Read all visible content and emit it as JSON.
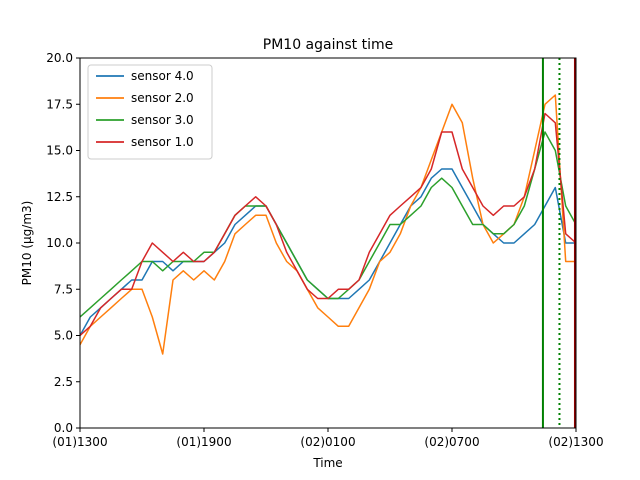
{
  "chart_data": {
    "type": "line",
    "title": "PM10 against  time",
    "xlabel": "Time",
    "ylabel": "PM10 (µg/m3)",
    "xlim": [
      0,
      24
    ],
    "ylim": [
      0,
      20
    ],
    "x_ticks": [
      {
        "value": 0,
        "label": "(01)1300"
      },
      {
        "value": 6,
        "label": "(01)1900"
      },
      {
        "value": 12,
        "label": "(02)0100"
      },
      {
        "value": 18,
        "label": "(02)0700"
      },
      {
        "value": 24,
        "label": "(02)1300"
      }
    ],
    "y_ticks": [
      0,
      2.5,
      5,
      7.5,
      10,
      12.5,
      15,
      17.5,
      20
    ],
    "y_tick_labels": [
      "0.0",
      "2.5",
      "5.0",
      "7.5",
      "10.0",
      "12.5",
      "15.0",
      "17.5",
      "20.0"
    ],
    "grid": false,
    "legend_position": "top-left",
    "series": [
      {
        "name": "sensor 4.0",
        "color": "#1f77b4",
        "x": [
          0,
          0.5,
          1,
          1.5,
          2,
          2.5,
          3,
          3.5,
          4,
          4.5,
          5,
          5.5,
          6,
          6.5,
          7,
          7.5,
          8,
          8.5,
          9,
          9.5,
          10,
          10.5,
          11,
          11.5,
          12,
          12.5,
          13,
          13.5,
          14,
          14.5,
          15,
          15.5,
          16,
          16.5,
          17,
          17.5,
          18,
          18.5,
          19,
          19.5,
          20,
          20.5,
          21,
          21.5,
          22,
          22.5,
          23,
          23.5,
          24
        ],
        "values": [
          5,
          6,
          6.5,
          7,
          7.5,
          8,
          8,
          9,
          9,
          8.5,
          9,
          9,
          9,
          9.5,
          10,
          11,
          11.5,
          12,
          12,
          11,
          10,
          9,
          8,
          7.5,
          7,
          7,
          7,
          7.5,
          8,
          9,
          10,
          11,
          12,
          12.5,
          13.5,
          14,
          14,
          13,
          12,
          11,
          10.5,
          10,
          10,
          10.5,
          11,
          12,
          13,
          10,
          10
        ]
      },
      {
        "name": "sensor 2.0",
        "color": "#ff7f0e",
        "x": [
          0,
          0.5,
          1,
          1.5,
          2,
          2.5,
          3,
          3.5,
          4,
          4.5,
          5,
          5.5,
          6,
          6.5,
          7,
          7.5,
          8,
          8.5,
          9,
          9.5,
          10,
          10.5,
          11,
          11.5,
          12,
          12.5,
          13,
          13.5,
          14,
          14.5,
          15,
          15.5,
          16,
          16.5,
          17,
          17.5,
          18,
          18.5,
          19,
          19.5,
          20,
          20.5,
          21,
          21.5,
          22,
          22.5,
          23,
          23.5,
          24
        ],
        "values": [
          4.5,
          5.5,
          6,
          6.5,
          7,
          7.5,
          7.5,
          6,
          4,
          8,
          8.5,
          8,
          8.5,
          8,
          9,
          10.5,
          11,
          11.5,
          11.5,
          10,
          9,
          8.5,
          7.5,
          6.5,
          6,
          5.5,
          5.5,
          6.5,
          7.5,
          9,
          9.5,
          10.5,
          12,
          13,
          14.5,
          16,
          17.5,
          16.5,
          13.5,
          11,
          10,
          10.5,
          11,
          12.5,
          15,
          17.5,
          18,
          9,
          9
        ]
      },
      {
        "name": "sensor 3.0",
        "color": "#2ca02c",
        "x": [
          0,
          0.5,
          1,
          1.5,
          2,
          2.5,
          3,
          3.5,
          4,
          4.5,
          5,
          5.5,
          6,
          6.5,
          7,
          7.5,
          8,
          8.5,
          9,
          9.5,
          10,
          10.5,
          11,
          11.5,
          12,
          12.5,
          13,
          13.5,
          14,
          14.5,
          15,
          15.5,
          16,
          16.5,
          17,
          17.5,
          18,
          18.5,
          19,
          19.5,
          20,
          20.5,
          21,
          21.5,
          22,
          22.5,
          23,
          23.5,
          24
        ],
        "values": [
          6,
          6.5,
          7,
          7.5,
          8,
          8.5,
          9,
          9,
          8.5,
          9,
          9,
          9,
          9.5,
          9.5,
          10.5,
          11.5,
          12,
          12,
          12,
          11,
          10,
          9,
          8,
          7.5,
          7,
          7,
          7.5,
          8,
          9,
          10,
          11,
          11,
          11.5,
          12,
          13,
          13.5,
          13,
          12,
          11,
          11,
          10.5,
          10.5,
          11,
          12,
          14,
          16,
          15,
          12,
          11
        ]
      },
      {
        "name": "sensor 1.0",
        "color": "#d62728",
        "x": [
          0,
          0.5,
          1,
          1.5,
          2,
          2.5,
          3,
          3.5,
          4,
          4.5,
          5,
          5.5,
          6,
          6.5,
          7,
          7.5,
          8,
          8.5,
          9,
          9.5,
          10,
          10.5,
          11,
          11.5,
          12,
          12.5,
          13,
          13.5,
          14,
          14.5,
          15,
          15.5,
          16,
          16.5,
          17,
          17.5,
          18,
          18.5,
          19,
          19.5,
          20,
          20.5,
          21,
          21.5,
          22,
          22.5,
          23,
          23.5,
          24
        ],
        "values": [
          5,
          5.5,
          6.5,
          7,
          7.5,
          7.5,
          9,
          10,
          9.5,
          9,
          9.5,
          9,
          9,
          9.5,
          10.5,
          11.5,
          12,
          12.5,
          12,
          11,
          9.5,
          8.5,
          7.5,
          7,
          7,
          7.5,
          7.5,
          8,
          9.5,
          10.5,
          11.5,
          12,
          12.5,
          13,
          14,
          16,
          16,
          14,
          13,
          12,
          11.5,
          12,
          12,
          12.5,
          14,
          17,
          16.5,
          10.5,
          10
        ]
      }
    ],
    "vertical_lines": [
      {
        "x": 22.4,
        "color": "#008000",
        "style": "solid"
      },
      {
        "x": 23.2,
        "color": "#008000",
        "style": "dotted"
      },
      {
        "x": 23.95,
        "color": "#8b0000",
        "style": "solid"
      }
    ]
  }
}
